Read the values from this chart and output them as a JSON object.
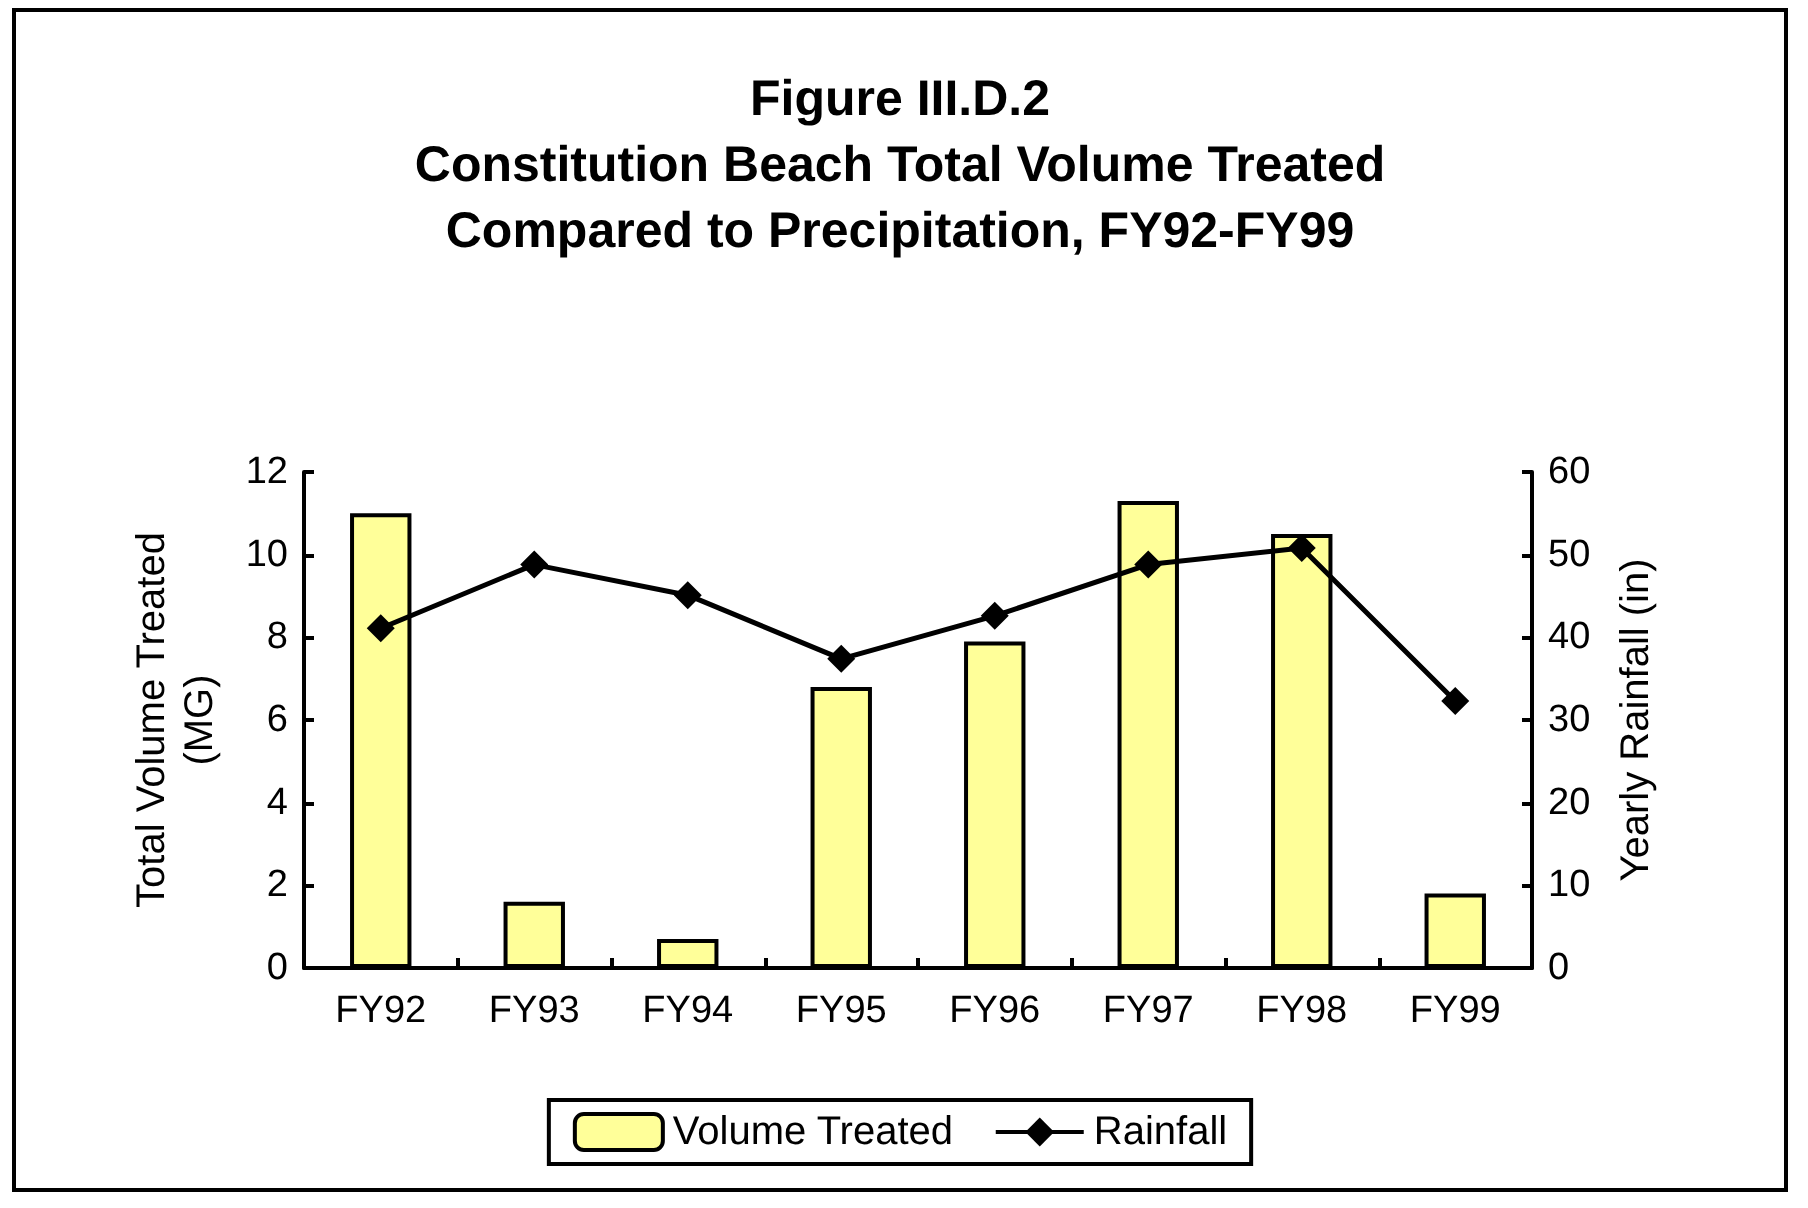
{
  "chart_data": {
    "type": "bar",
    "title": "Figure III.D.2\nConstitution Beach Total Volume Treated\nCompared to Precipitation, FY92-FY99",
    "ylabel": "Total Volume Treated\n(MG)",
    "y2label": "Yearly Rainfall (in)",
    "categories": [
      "FY92",
      "FY93",
      "FY94",
      "FY95",
      "FY96",
      "FY97",
      "FY98",
      "FY99"
    ],
    "series": [
      {
        "name": "Volume Treated",
        "color": "#ffff99",
        "values": [
          11.0,
          1.6,
          0.7,
          6.8,
          7.9,
          11.3,
          10.5,
          1.8
        ]
      },
      {
        "name": "Rainfall",
        "type": "line",
        "axis": "y2",
        "color": "#000000",
        "marker": "diamond",
        "values": [
          41.1,
          48.8,
          45.1,
          37.4,
          42.6,
          48.8,
          50.8,
          32.3
        ]
      }
    ],
    "ylim": [
      0,
      12
    ],
    "yticks": [
      0,
      2,
      4,
      6,
      8,
      10,
      12
    ],
    "y2lim": [
      0,
      60
    ],
    "y2ticks": [
      0,
      10,
      20,
      30,
      40,
      50,
      60
    ],
    "grid": false,
    "legend": "bottom"
  }
}
